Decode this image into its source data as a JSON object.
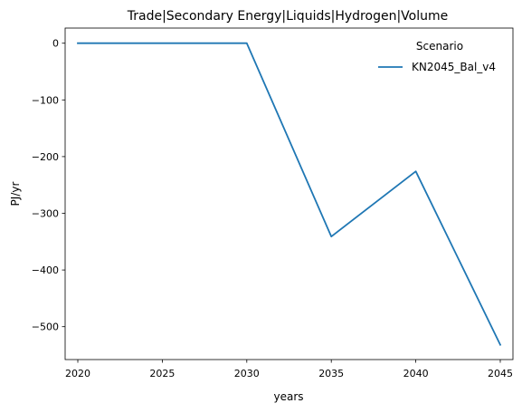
{
  "chart_data": {
    "type": "line",
    "title": "Trade|Secondary Energy|Liquids|Hydrogen|Volume",
    "xlabel": "years",
    "ylabel": "PJ/yr",
    "x": [
      2020,
      2025,
      2030,
      2035,
      2040,
      2045
    ],
    "xticks": [
      "2020",
      "2025",
      "2030",
      "2035",
      "2040",
      "2045"
    ],
    "yticks": [
      0,
      -100,
      -200,
      -300,
      -400,
      -500
    ],
    "yticks_labels": [
      "0",
      "−100",
      "−200",
      "−300",
      "−400",
      "−500"
    ],
    "xlim": [
      2019.25,
      2045.75
    ],
    "ylim": [
      -558,
      26.7
    ],
    "grid": false,
    "legend": {
      "title": "Scenario",
      "placement": "top-right"
    },
    "series": [
      {
        "name": "KN2045_Bal_v4",
        "color": "#1f77b4",
        "values": [
          0,
          0,
          0,
          -341,
          -226,
          -532
        ]
      }
    ]
  }
}
